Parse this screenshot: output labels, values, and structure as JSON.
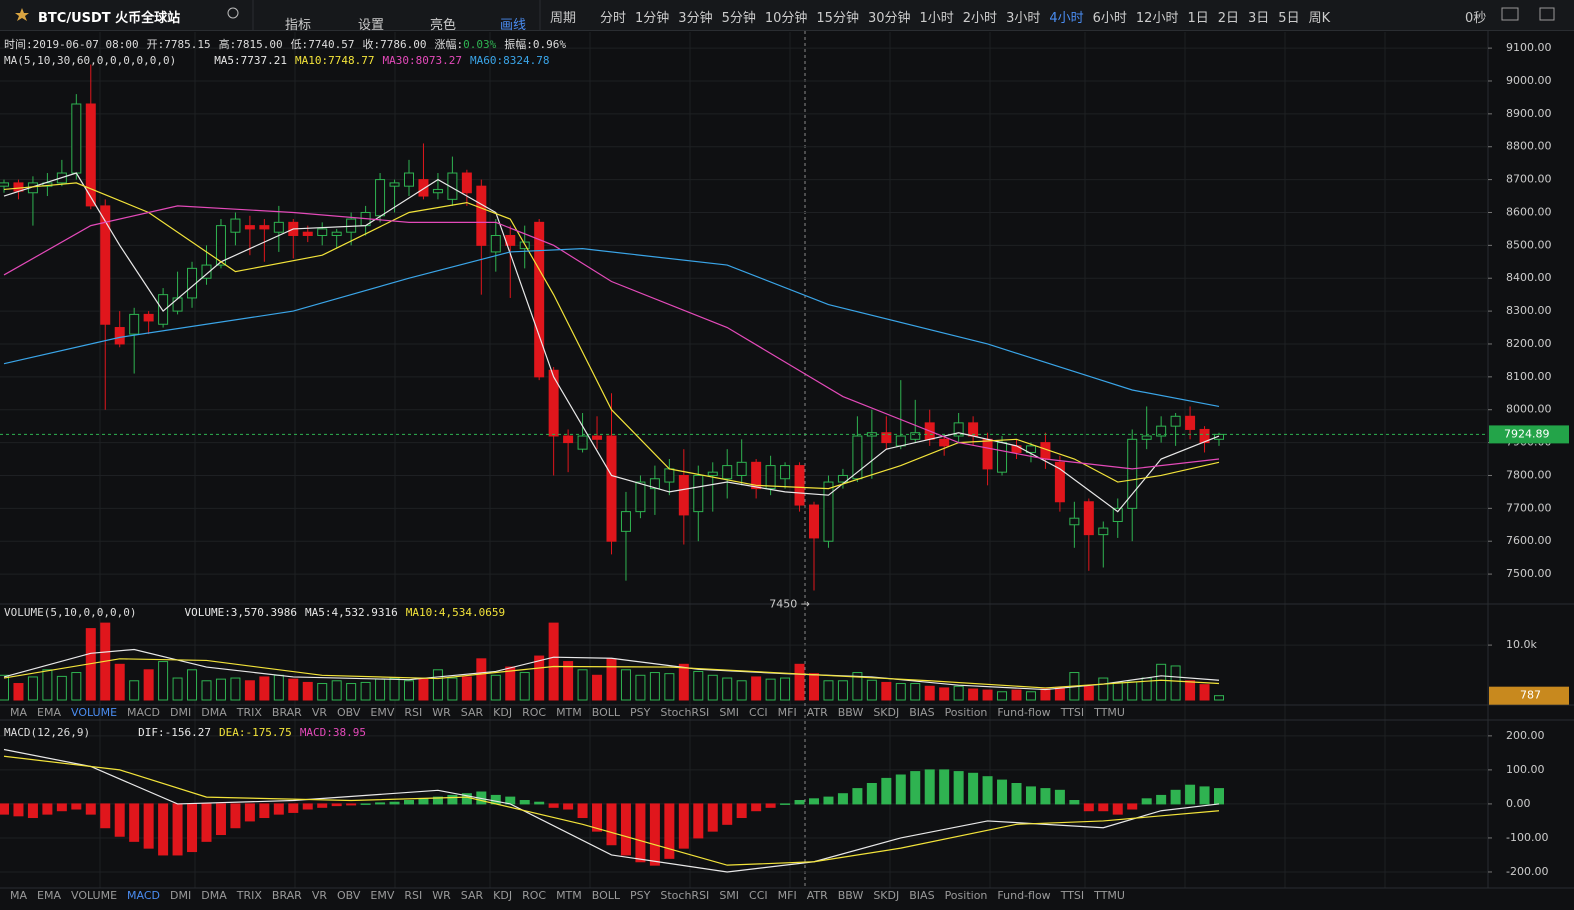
{
  "toolbar": {
    "symbol": "BTC/USDT 火币全球站",
    "buttons": [
      "指标",
      "设置",
      "亮色",
      "画线"
    ],
    "active_button": 3,
    "period_label": "周期",
    "periods": [
      "分时",
      "1分钟",
      "3分钟",
      "5分钟",
      "10分钟",
      "15分钟",
      "30分钟",
      "1小时",
      "2小时",
      "3小时",
      "4小时",
      "6小时",
      "12小时",
      "1日",
      "2日",
      "3日",
      "5日",
      "周K"
    ],
    "active_period": 10,
    "timer": "0秒"
  },
  "indicator_tabs": [
    "MA",
    "EMA",
    "VOLUME",
    "MACD",
    "DMI",
    "DMA",
    "TRIX",
    "BRAR",
    "VR",
    "OBV",
    "EMV",
    "RSI",
    "WR",
    "SAR",
    "KDJ",
    "ROC",
    "MTM",
    "BOLL",
    "PSY",
    "StochRSI",
    "SMI",
    "CCI",
    "MFI",
    "ATR",
    "BBW",
    "SKDJ",
    "BIAS",
    "Position",
    "Fund-flow",
    "TTSI",
    "TTMU"
  ],
  "chart_data": [
    {
      "type": "candlestick",
      "up_color": "#2fb351",
      "down_color": "#e0161c",
      "info": [
        {
          "label": "时间:",
          "value": "2019-06-07 08:00"
        },
        {
          "label": "开:",
          "value": "7785.15"
        },
        {
          "label": "高:",
          "value": "7815.00"
        },
        {
          "label": "低:",
          "value": "7740.57"
        },
        {
          "label": "收:",
          "value": "7786.00"
        },
        {
          "label": "涨幅:",
          "value": "0.03%",
          "color": "#2fb351"
        },
        {
          "label": "振幅:",
          "value": "0.96%"
        }
      ],
      "indicator": "MA(5,10,30,60,0,0,0,0,0,0)",
      "open": [
        8680,
        8690,
        8660,
        8680,
        8690,
        8720,
        8930,
        8620,
        8250,
        8230,
        8290,
        8260,
        8300,
        8340,
        8400,
        8440,
        8540,
        8560,
        8560,
        8540,
        8570,
        8540,
        8530,
        8530,
        8540,
        8560,
        8590,
        8680,
        8680,
        8700,
        8660,
        8640,
        8720,
        8680,
        8480,
        8530,
        8490,
        8570,
        8120,
        7920,
        7880,
        7920,
        7920,
        7630,
        7690,
        7760,
        7780,
        7800,
        7690,
        7800,
        7790,
        7800,
        7840,
        7760,
        7790,
        7830,
        7710,
        7600,
        7780,
        7790,
        7920,
        7930,
        7890,
        7910,
        7960,
        7910,
        7920,
        7960,
        7910,
        7810,
        7890,
        7870,
        7900,
        7840,
        7650,
        7720,
        7620,
        7660,
        7700,
        7910,
        7920,
        7950,
        7980,
        7940,
        7910
      ],
      "high": [
        8700,
        8700,
        8710,
        8720,
        8760,
        8960,
        9050,
        8640,
        8300,
        8310,
        8300,
        8370,
        8420,
        8450,
        8500,
        8580,
        8600,
        8590,
        8580,
        8620,
        8580,
        8560,
        8570,
        8550,
        8600,
        8620,
        8720,
        8700,
        8760,
        8810,
        8720,
        8770,
        8730,
        8700,
        8580,
        8560,
        8560,
        8580,
        8130,
        7940,
        7990,
        7980,
        8050,
        7750,
        7800,
        7830,
        7850,
        7880,
        7830,
        7840,
        7880,
        7910,
        7850,
        7860,
        7840,
        7840,
        7720,
        7800,
        7820,
        7980,
        8000,
        7980,
        8090,
        8030,
        8000,
        7920,
        7990,
        7980,
        7930,
        7920,
        7910,
        7900,
        7930,
        7860,
        7720,
        7730,
        7660,
        7730,
        7940,
        8010,
        7980,
        7990,
        8010,
        7950,
        7930
      ],
      "low": [
        8660,
        8640,
        8560,
        8650,
        8680,
        8700,
        8610,
        8000,
        8190,
        8110,
        8230,
        8250,
        8290,
        8310,
        8380,
        8430,
        8500,
        8470,
        8450,
        8480,
        8460,
        8510,
        8500,
        8490,
        8500,
        8530,
        8570,
        8600,
        8650,
        8640,
        8640,
        8620,
        8620,
        8350,
        8420,
        8340,
        8430,
        8090,
        7800,
        7810,
        7870,
        7880,
        7560,
        7480,
        7670,
        7680,
        7740,
        7590,
        7600,
        7690,
        7730,
        7770,
        7730,
        7740,
        7760,
        7690,
        7450,
        7580,
        7760,
        7780,
        7790,
        7880,
        7880,
        7900,
        7890,
        7860,
        7900,
        7890,
        7770,
        7800,
        7850,
        7840,
        7820,
        7690,
        7580,
        7510,
        7520,
        7610,
        7600,
        7880,
        7900,
        7890,
        7910,
        7870,
        7890
      ],
      "close": [
        8690,
        8665,
        8690,
        8690,
        8720,
        8930,
        8620,
        8260,
        8200,
        8290,
        8270,
        8350,
        8340,
        8430,
        8440,
        8560,
        8580,
        8550,
        8550,
        8570,
        8530,
        8530,
        8550,
        8540,
        8580,
        8600,
        8700,
        8690,
        8720,
        8650,
        8670,
        8720,
        8660,
        8500,
        8530,
        8500,
        8510,
        8100,
        7920,
        7900,
        7920,
        7910,
        7600,
        7690,
        7780,
        7790,
        7820,
        7680,
        7800,
        7810,
        7830,
        7840,
        7760,
        7830,
        7830,
        7710,
        7610,
        7780,
        7800,
        7920,
        7930,
        7900,
        7920,
        7930,
        7910,
        7890,
        7960,
        7920,
        7820,
        7900,
        7870,
        7890,
        7850,
        7720,
        7670,
        7620,
        7640,
        7700,
        7910,
        7920,
        7950,
        7980,
        7940,
        7900,
        7925
      ],
      "lines": [
        {
          "label": "MA5:7737.21",
          "color": "#e8e8e8",
          "x": [
            0,
            5,
            8,
            11,
            15,
            20,
            25,
            30,
            34,
            38,
            42,
            46,
            50,
            54,
            57,
            61,
            66,
            70,
            73,
            77,
            80,
            84
          ],
          "values": [
            8650,
            8720,
            8500,
            8300,
            8450,
            8550,
            8560,
            8700,
            8600,
            8100,
            7800,
            7750,
            7780,
            7750,
            7740,
            7880,
            7930,
            7890,
            7820,
            7690,
            7850,
            7920
          ]
        },
        {
          "label": "MA10:7748.77",
          "color": "#f2e33a",
          "x": [
            0,
            5,
            10,
            16,
            22,
            28,
            32,
            35,
            38,
            42,
            46,
            52,
            57,
            62,
            66,
            70,
            74,
            77,
            80,
            84
          ],
          "values": [
            8670,
            8690,
            8600,
            8420,
            8470,
            8600,
            8630,
            8580,
            8350,
            8000,
            7820,
            7770,
            7760,
            7830,
            7900,
            7910,
            7850,
            7780,
            7800,
            7840
          ]
        },
        {
          "label": "MA30:8073.27",
          "color": "#e34ab9",
          "x": [
            0,
            6,
            12,
            20,
            28,
            34,
            38,
            42,
            50,
            58,
            66,
            72,
            78,
            84
          ],
          "values": [
            8410,
            8560,
            8620,
            8600,
            8570,
            8570,
            8500,
            8390,
            8250,
            8040,
            7900,
            7850,
            7820,
            7850
          ]
        },
        {
          "label": "MA60:8324.78",
          "color": "#3aa5e8",
          "x": [
            0,
            8,
            20,
            28,
            35,
            40,
            50,
            57,
            68,
            78,
            84
          ],
          "values": [
            8140,
            8220,
            8300,
            8400,
            8480,
            8490,
            8440,
            8320,
            8200,
            8060,
            8010
          ]
        }
      ],
      "last_price": 7924.89,
      "annotation": {
        "text": "7450 →",
        "index": 56
      },
      "ylim": [
        7409,
        9149
      ],
      "yticks": [
        {
          "value": 7500,
          "label": "7500.00"
        },
        {
          "value": 7600,
          "label": "7600.00"
        },
        {
          "value": 7700,
          "label": "7700.00"
        },
        {
          "value": 7800,
          "label": "7800.00"
        },
        {
          "value": 7900,
          "label": "7900.00"
        },
        {
          "value": 8000,
          "label": "8000.00"
        },
        {
          "value": 8100,
          "label": "8100.00"
        },
        {
          "value": 8200,
          "label": "8200.00"
        },
        {
          "value": 8300,
          "label": "8300.00"
        },
        {
          "value": 8400,
          "label": "8400.00"
        },
        {
          "value": 8500,
          "label": "8500.00"
        },
        {
          "value": 8600,
          "label": "8600.00"
        },
        {
          "value": 8700,
          "label": "8700.00"
        },
        {
          "value": 8800,
          "label": "8800.00"
        },
        {
          "value": 8900,
          "label": "8900.00"
        },
        {
          "value": 9000,
          "label": "9000.00"
        },
        {
          "value": 9100,
          "label": "9100.00"
        }
      ]
    },
    {
      "type": "bar",
      "indicator": "VOLUME(5,10,0,0,0,0)",
      "active_tab": 2,
      "readings": [
        {
          "text": "VOLUME:3,570.3986",
          "color": "#e8e8e8"
        },
        {
          "text": "MA5:4,532.9316",
          "color": "#e8e8e8"
        },
        {
          "text": "MA10:4,534.0659",
          "color": "#f2e33a"
        }
      ],
      "values": [
        4500,
        3000,
        4200,
        5500,
        4300,
        5000,
        13000,
        14000,
        6500,
        3500,
        5500,
        7000,
        4000,
        5500,
        3500,
        3800,
        4000,
        3500,
        4200,
        4500,
        3800,
        3200,
        3000,
        3500,
        3000,
        3200,
        3800,
        4000,
        3500,
        3800,
        5500,
        4000,
        4200,
        7500,
        4500,
        6000,
        5000,
        8000,
        14000,
        7000,
        5500,
        4500,
        7500,
        5500,
        4500,
        5000,
        4800,
        6500,
        5200,
        4500,
        4000,
        3500,
        4200,
        3800,
        4000,
        6500,
        4800,
        3500,
        3500,
        5000,
        3600,
        3200,
        3000,
        3000,
        2500,
        2200,
        2500,
        2000,
        1800,
        1500,
        1800,
        1500,
        2000,
        2200,
        5000,
        2500,
        4000,
        3200,
        3300,
        4000,
        6500,
        6200,
        3500,
        2800,
        787
      ],
      "lines": [
        {
          "color": "#e8e8e8",
          "x": [
            0,
            6,
            9,
            14,
            20,
            28,
            34,
            38,
            42,
            48,
            54,
            60,
            66,
            72,
            76,
            80,
            84
          ],
          "values": [
            4200,
            8500,
            9200,
            6000,
            4200,
            3700,
            5200,
            7800,
            7600,
            5600,
            4800,
            4200,
            2700,
            1900,
            2900,
            4400,
            3600
          ]
        },
        {
          "color": "#f2e33a",
          "x": [
            0,
            8,
            14,
            22,
            30,
            38,
            46,
            56,
            64,
            72,
            80,
            84
          ],
          "values": [
            4000,
            7500,
            7200,
            4500,
            3900,
            6100,
            6000,
            4600,
            3500,
            2200,
            3600,
            3000
          ]
        }
      ],
      "last_value": 787,
      "ylim": [
        0,
        17300
      ],
      "yticks": [
        {
          "value": 10000,
          "label": "10.0k"
        }
      ]
    },
    {
      "type": "bar",
      "indicator": "MACD(12,26,9)",
      "active_tab": 3,
      "readings": [
        {
          "text": "DIF:-156.27",
          "color": "#e8e8e8"
        },
        {
          "text": "DEA:-175.75",
          "color": "#f2e33a"
        },
        {
          "text": "MACD:38.95",
          "color": "#e34ab9"
        }
      ],
      "values": [
        -30,
        -35,
        -40,
        -30,
        -20,
        -15,
        -30,
        -70,
        -95,
        -110,
        -130,
        -150,
        -150,
        -140,
        -110,
        -90,
        -70,
        -50,
        -40,
        -30,
        -25,
        -15,
        -10,
        -5,
        -3,
        0,
        3,
        5,
        10,
        15,
        20,
        25,
        30,
        35,
        25,
        20,
        10,
        5,
        -10,
        -15,
        -40,
        -80,
        -120,
        -150,
        -170,
        -180,
        -160,
        -130,
        -100,
        -80,
        -60,
        -40,
        -20,
        -10,
        0,
        10,
        15,
        20,
        30,
        45,
        60,
        75,
        85,
        95,
        100,
        100,
        95,
        90,
        80,
        70,
        60,
        50,
        45,
        40,
        10,
        -20,
        -20,
        -30,
        -15,
        15,
        25,
        40,
        55,
        50,
        45
      ],
      "lines": [
        {
          "color": "#e8e8e8",
          "x": [
            0,
            6,
            12,
            20,
            30,
            35,
            42,
            50,
            56,
            62,
            68,
            76,
            80,
            84
          ],
          "values": [
            160,
            110,
            0,
            10,
            40,
            0,
            -150,
            -200,
            -170,
            -100,
            -50,
            -70,
            -20,
            0
          ]
        },
        {
          "color": "#f2e33a",
          "x": [
            0,
            8,
            14,
            24,
            32,
            40,
            50,
            56,
            62,
            70,
            76,
            84
          ],
          "values": [
            140,
            100,
            20,
            10,
            20,
            -60,
            -180,
            -170,
            -130,
            -60,
            -50,
            -20
          ]
        }
      ],
      "ylim": [
        -253,
        229
      ],
      "yticks": [
        {
          "value": -200,
          "label": "-200.00"
        },
        {
          "value": -100,
          "label": "-100.00"
        },
        {
          "value": 0,
          "label": "0.00"
        },
        {
          "value": 100,
          "label": "100.00"
        },
        {
          "value": 200,
          "label": "200.00"
        }
      ]
    }
  ]
}
